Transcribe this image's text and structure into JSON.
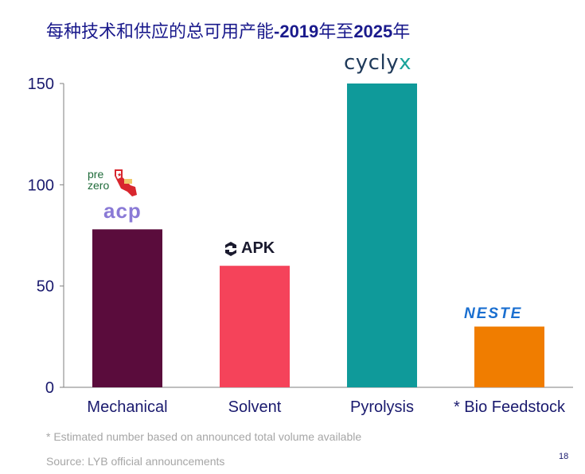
{
  "title_text": "每种技术和供应的总可用产能",
  "title_bold": "-2019",
  "title_mid": "年至",
  "title_bold2": "2025",
  "title_end": "年",
  "footnote": "* Estimated number based on announced total volume available",
  "source": "Source: LYB official announcements",
  "page_number": "18",
  "logos": {
    "cyclyx_main": "cycly",
    "cyclyx_x": "x",
    "apk": "APK",
    "neste": "NESTE",
    "prezero_line1": "pre",
    "prezero_line2": "zero",
    "acp": "acp"
  },
  "chart_data": {
    "type": "bar",
    "title": "每种技术和供应的总可用产能-2019年至2025年",
    "categories": [
      "Mechanical",
      "Solvent",
      "Pyrolysis",
      "* Bio Feedstock"
    ],
    "values": [
      78,
      60,
      150,
      30
    ],
    "colors": [
      "#5a0c3c",
      "#f5435a",
      "#0f9a9a",
      "#f07d00"
    ],
    "yticks": [
      0,
      50,
      100,
      150
    ],
    "ylim": [
      0,
      150
    ],
    "xlabel": "",
    "ylabel": "",
    "grid": false
  }
}
